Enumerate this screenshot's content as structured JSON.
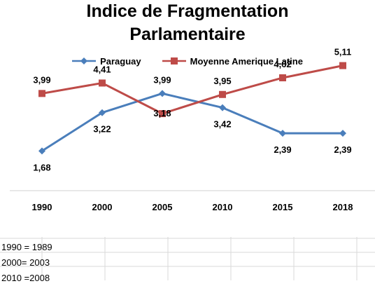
{
  "chart_data": {
    "type": "line",
    "title_lines": [
      "Indice de Fragmentation",
      "Parlamentaire"
    ],
    "categories": [
      "1990",
      "2000",
      "2005",
      "2010",
      "2015",
      "2018"
    ],
    "series": [
      {
        "name": "Paraguay",
        "color": "#4a7ebb",
        "marker": "diamond",
        "values": [
          1.68,
          3.22,
          3.99,
          3.42,
          2.39,
          2.39
        ],
        "labels": [
          "1,68",
          "3,22",
          "3,99",
          "3,42",
          "2,39",
          "2,39"
        ]
      },
      {
        "name": "Moyenne Amerique Latine",
        "color": "#be4b48",
        "marker": "square",
        "values": [
          3.99,
          4.41,
          3.18,
          3.95,
          4.62,
          5.11
        ],
        "labels": [
          "3,99",
          "4,41",
          "3,18",
          "3,95",
          "4,62",
          "5,11"
        ]
      }
    ],
    "ylim": [
      0,
      6
    ],
    "legend_position": "top",
    "grid": false
  },
  "notes": [
    "1990 = 1989",
    "2000= 2003",
    "2010 =2008"
  ]
}
